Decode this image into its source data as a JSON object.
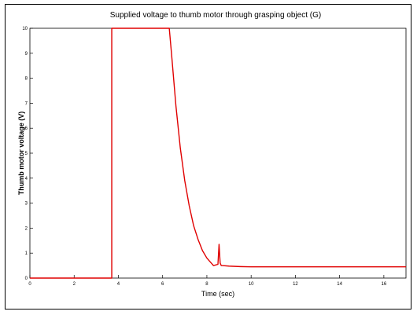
{
  "chart_data": {
    "type": "line",
    "title": "Supplied voltage to thumb motor through grasping object (G)",
    "xlabel": "Time (sec)",
    "ylabel": "Thumb motor voltage  (V)",
    "xlim": [
      0,
      17
    ],
    "ylim": [
      0,
      10
    ],
    "xticks": [
      0,
      2,
      4,
      6,
      8,
      10,
      12,
      14,
      16
    ],
    "yticks": [
      0,
      1,
      2,
      3,
      4,
      5,
      6,
      7,
      8,
      9,
      10
    ],
    "grid": false,
    "series": [
      {
        "color": "#e00000",
        "x": [
          0,
          3.7,
          3.7,
          6.3,
          6.4,
          6.6,
          6.8,
          7.0,
          7.2,
          7.4,
          7.6,
          7.8,
          8.0,
          8.2,
          8.3,
          8.5,
          8.55,
          8.6,
          8.65,
          8.7,
          9.0,
          9.5,
          10,
          11,
          12,
          13,
          14,
          15,
          16,
          17
        ],
        "y": [
          0,
          0,
          10,
          10,
          9.0,
          6.9,
          5.2,
          3.9,
          2.9,
          2.1,
          1.55,
          1.1,
          0.8,
          0.6,
          0.5,
          0.55,
          1.35,
          0.6,
          0.5,
          0.5,
          0.48,
          0.46,
          0.45,
          0.45,
          0.45,
          0.45,
          0.45,
          0.45,
          0.45,
          0.45
        ]
      }
    ]
  }
}
